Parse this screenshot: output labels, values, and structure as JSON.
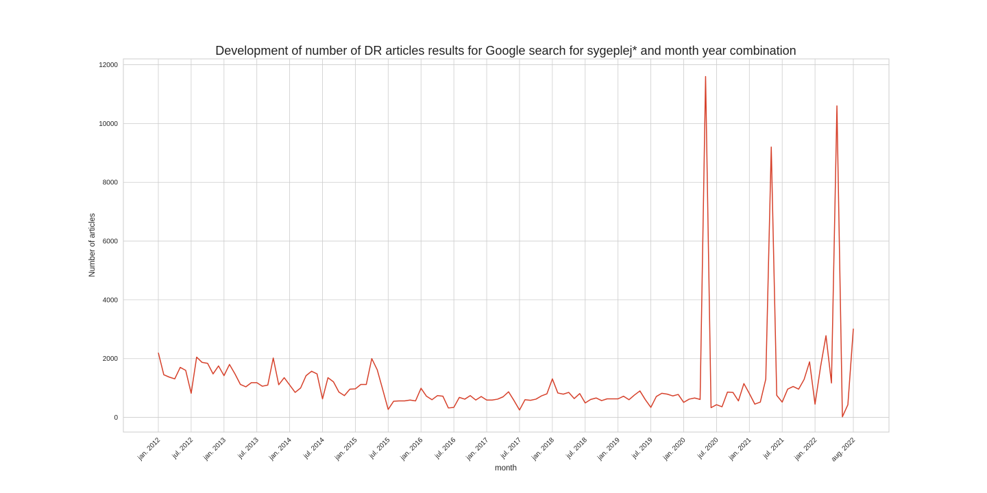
{
  "chart_data": {
    "type": "line",
    "title": "Development of number of DR articles results for Google search for sygeplej* and month year combination",
    "xlabel": "month",
    "ylabel": "Number of articles",
    "ylim": [
      -500,
      12200
    ],
    "yticks": [
      0,
      2000,
      4000,
      6000,
      8000,
      10000,
      12000
    ],
    "xticks": [
      {
        "label": "jan. 2012",
        "date": "2012-01"
      },
      {
        "label": "jul. 2012",
        "date": "2012-07"
      },
      {
        "label": "jan. 2013",
        "date": "2013-01"
      },
      {
        "label": "jul. 2013",
        "date": "2013-07"
      },
      {
        "label": "jan. 2014",
        "date": "2014-01"
      },
      {
        "label": "jul. 2014",
        "date": "2014-07"
      },
      {
        "label": "jan. 2015",
        "date": "2015-01"
      },
      {
        "label": "jul. 2015",
        "date": "2015-07"
      },
      {
        "label": "jan. 2016",
        "date": "2016-01"
      },
      {
        "label": "jul. 2016",
        "date": "2016-07"
      },
      {
        "label": "jan. 2017",
        "date": "2017-01"
      },
      {
        "label": "jul. 2017",
        "date": "2017-07"
      },
      {
        "label": "jan. 2018",
        "date": "2018-01"
      },
      {
        "label": "jul. 2018",
        "date": "2018-07"
      },
      {
        "label": "jan. 2019",
        "date": "2019-01"
      },
      {
        "label": "jul. 2019",
        "date": "2019-07"
      },
      {
        "label": "jan. 2020",
        "date": "2020-01"
      },
      {
        "label": "jul. 2020",
        "date": "2020-07"
      },
      {
        "label": "jan. 2021",
        "date": "2021-01"
      },
      {
        "label": "jul. 2021",
        "date": "2021-07"
      },
      {
        "label": "jan. 2022",
        "date": "2022-01"
      },
      {
        "label": "aug. 2022",
        "date": "2022-08"
      }
    ],
    "grid": true,
    "legend": "none",
    "color": "#d6402a",
    "x": [
      "2012-01",
      "2012-02",
      "2012-03",
      "2012-04",
      "2012-05",
      "2012-06",
      "2012-07",
      "2012-08",
      "2012-09",
      "2012-10",
      "2012-11",
      "2012-12",
      "2013-01",
      "2013-02",
      "2013-03",
      "2013-04",
      "2013-05",
      "2013-06",
      "2013-07",
      "2013-08",
      "2013-09",
      "2013-10",
      "2013-11",
      "2013-12",
      "2014-01",
      "2014-02",
      "2014-03",
      "2014-04",
      "2014-05",
      "2014-06",
      "2014-07",
      "2014-08",
      "2014-09",
      "2014-10",
      "2014-11",
      "2014-12",
      "2015-01",
      "2015-02",
      "2015-03",
      "2015-04",
      "2015-05",
      "2015-06",
      "2015-07",
      "2015-08",
      "2015-09",
      "2015-10",
      "2015-11",
      "2015-12",
      "2016-01",
      "2016-02",
      "2016-03",
      "2016-04",
      "2016-05",
      "2016-06",
      "2016-07",
      "2016-08",
      "2016-09",
      "2016-10",
      "2016-11",
      "2016-12",
      "2017-01",
      "2017-02",
      "2017-03",
      "2017-04",
      "2017-05",
      "2017-06",
      "2017-07",
      "2017-08",
      "2017-09",
      "2017-10",
      "2017-11",
      "2017-12",
      "2018-01",
      "2018-02",
      "2018-03",
      "2018-04",
      "2018-05",
      "2018-06",
      "2018-07",
      "2018-08",
      "2018-09",
      "2018-10",
      "2018-11",
      "2018-12",
      "2019-01",
      "2019-02",
      "2019-03",
      "2019-04",
      "2019-05",
      "2019-06",
      "2019-07",
      "2019-08",
      "2019-09",
      "2019-10",
      "2019-11",
      "2019-12",
      "2020-01",
      "2020-02",
      "2020-03",
      "2020-04",
      "2020-05",
      "2020-06",
      "2020-07",
      "2020-08",
      "2020-09",
      "2020-10",
      "2020-11",
      "2020-12",
      "2021-01",
      "2021-02",
      "2021-03",
      "2021-04",
      "2021-05",
      "2021-06",
      "2021-07",
      "2021-08",
      "2021-09",
      "2021-10",
      "2021-11",
      "2021-12",
      "2022-01",
      "2022-02",
      "2022-03",
      "2022-04",
      "2022-05",
      "2022-06",
      "2022-07",
      "2022-08"
    ],
    "values": [
      2200,
      1450,
      1370,
      1310,
      1700,
      1600,
      820,
      2050,
      1870,
      1840,
      1480,
      1750,
      1420,
      1800,
      1480,
      1120,
      1040,
      1180,
      1180,
      1060,
      1100,
      2020,
      1110,
      1350,
      1100,
      850,
      1000,
      1420,
      1570,
      1480,
      630,
      1350,
      1210,
      860,
      740,
      960,
      970,
      1120,
      1120,
      2000,
      1620,
      950,
      270,
      550,
      560,
      560,
      590,
      560,
      990,
      720,
      600,
      740,
      720,
      320,
      340,
      680,
      620,
      740,
      590,
      710,
      590,
      590,
      620,
      700,
      870,
      570,
      250,
      600,
      580,
      620,
      730,
      800,
      1310,
      830,
      790,
      850,
      640,
      810,
      490,
      610,
      660,
      570,
      630,
      630,
      630,
      720,
      600,
      760,
      900,
      600,
      340,
      710,
      820,
      790,
      730,
      780,
      510,
      620,
      660,
      610,
      11600,
      330,
      430,
      360,
      860,
      850,
      560,
      1150,
      810,
      450,
      520,
      1300,
      9200,
      750,
      520,
      960,
      1050,
      960,
      1290,
      1890,
      450,
      1710,
      2780,
      1170,
      10600,
      20,
      430,
      3020
    ]
  }
}
